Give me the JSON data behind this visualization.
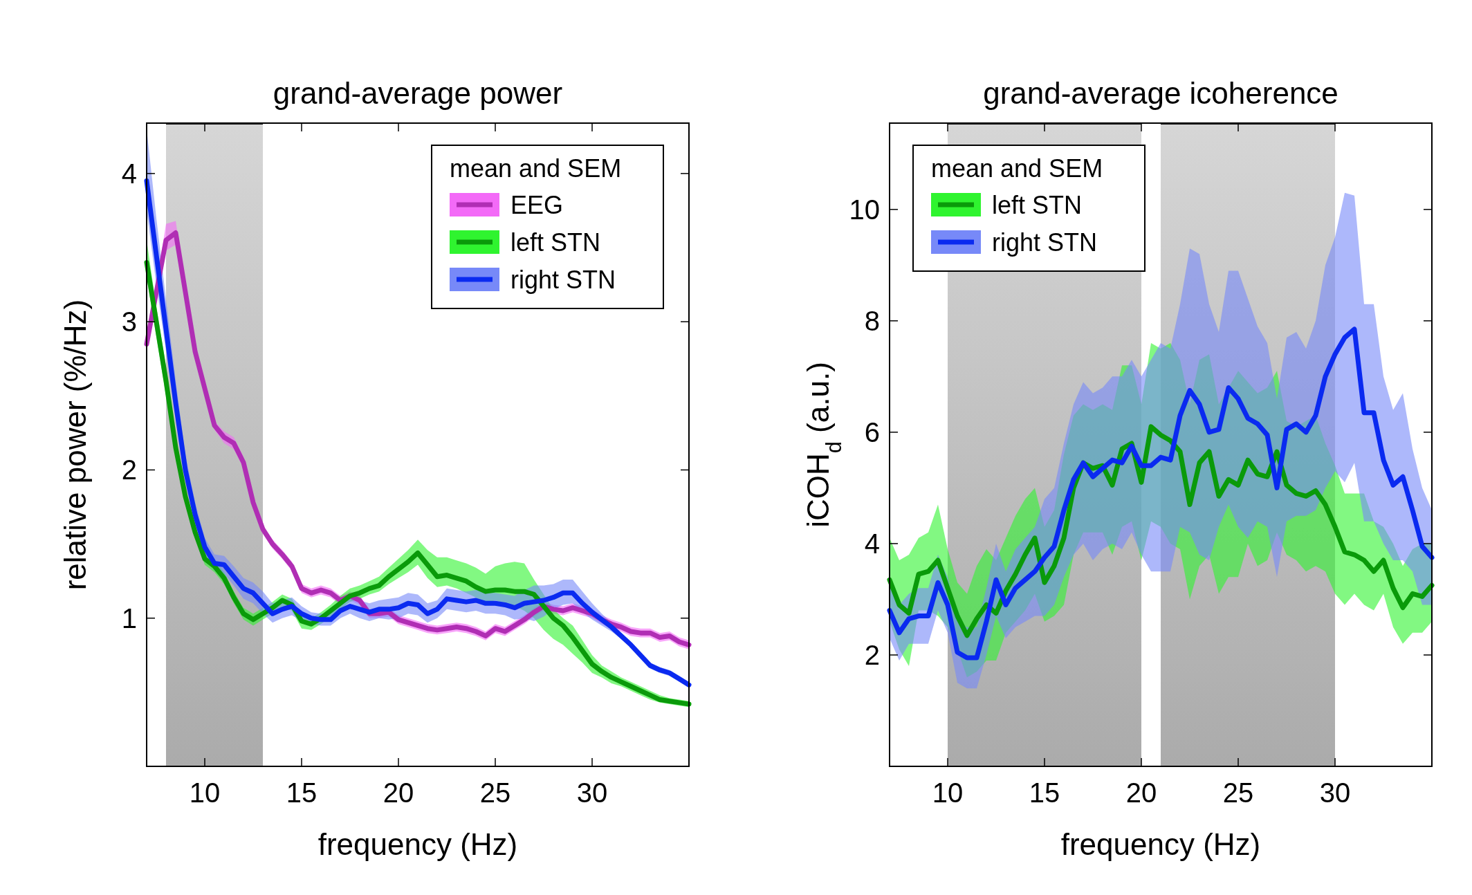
{
  "chart_data": [
    {
      "type": "line",
      "title": "grand-average power",
      "xlabel": "frequency (Hz)",
      "ylabel": "relative power (%/Hz)",
      "legend_title": "mean and SEM",
      "legend": "top right",
      "grid": false,
      "xlim": [
        7,
        35
      ],
      "ylim": [
        0,
        4.34
      ],
      "xticks": [
        10,
        15,
        20,
        25,
        30
      ],
      "yticks": [
        1,
        2,
        3,
        4
      ],
      "bands": [
        {
          "axis": "x",
          "from": 8,
          "to": 13,
          "color": "#b4b4b4"
        }
      ],
      "x": [
        7,
        7.5,
        8,
        8.5,
        9,
        9.5,
        10,
        10.5,
        11,
        11.5,
        12,
        12.5,
        13,
        13.5,
        14,
        14.5,
        15,
        15.5,
        16,
        16.5,
        17,
        17.5,
        18,
        18.5,
        19,
        19.5,
        20,
        20.5,
        21,
        21.5,
        22,
        22.5,
        23,
        23.5,
        24,
        24.5,
        25,
        25.5,
        26,
        26.5,
        27,
        27.5,
        28,
        28.5,
        29,
        29.5,
        30,
        30.5,
        31,
        31.5,
        32,
        32.5,
        33,
        33.5,
        34,
        34.5,
        35
      ],
      "series": [
        {
          "name": "EEG",
          "color": "#b02eb4",
          "values": [
            2.85,
            3.2,
            3.55,
            3.6,
            3.2,
            2.8,
            2.55,
            2.3,
            2.22,
            2.18,
            2.05,
            1.78,
            1.6,
            1.5,
            1.43,
            1.35,
            1.2,
            1.17,
            1.19,
            1.17,
            1.12,
            1.15,
            1.12,
            1.03,
            1.03,
            1.04,
            0.99,
            0.97,
            0.95,
            0.93,
            0.92,
            0.93,
            0.94,
            0.93,
            0.91,
            0.88,
            0.93,
            0.91,
            0.95,
            0.99,
            1.04,
            1.08,
            1.06,
            1.05,
            1.07,
            1.05,
            1.03,
            0.99,
            0.96,
            0.94,
            0.91,
            0.9,
            0.9,
            0.87,
            0.88,
            0.84,
            0.82
          ],
          "lower": [
            2.8,
            3.15,
            3.48,
            3.52,
            3.15,
            2.76,
            2.51,
            2.27,
            2.18,
            2.14,
            2.01,
            1.75,
            1.57,
            1.47,
            1.4,
            1.32,
            1.17,
            1.14,
            1.16,
            1.14,
            1.09,
            1.12,
            1.09,
            1.0,
            1.0,
            1.01,
            0.96,
            0.94,
            0.92,
            0.9,
            0.89,
            0.9,
            0.91,
            0.9,
            0.88,
            0.85,
            0.9,
            0.88,
            0.92,
            0.96,
            1.01,
            1.05,
            1.03,
            1.02,
            1.04,
            1.02,
            1.0,
            0.96,
            0.93,
            0.91,
            0.88,
            0.87,
            0.87,
            0.84,
            0.85,
            0.81,
            0.79
          ],
          "upper": [
            2.9,
            3.25,
            3.66,
            3.68,
            3.25,
            2.84,
            2.59,
            2.33,
            2.26,
            2.22,
            2.09,
            1.81,
            1.63,
            1.53,
            1.46,
            1.38,
            1.23,
            1.2,
            1.22,
            1.2,
            1.15,
            1.18,
            1.15,
            1.06,
            1.06,
            1.07,
            1.02,
            1.0,
            0.98,
            0.96,
            0.95,
            0.96,
            0.97,
            0.96,
            0.94,
            0.91,
            0.96,
            0.94,
            0.98,
            1.02,
            1.07,
            1.11,
            1.09,
            1.08,
            1.1,
            1.08,
            1.06,
            1.02,
            0.99,
            0.97,
            0.94,
            0.93,
            0.93,
            0.9,
            0.91,
            0.87,
            0.85
          ]
        },
        {
          "name": "left STN",
          "color": "#0a9a0a",
          "values": [
            3.4,
            3.0,
            2.6,
            2.15,
            1.82,
            1.58,
            1.4,
            1.35,
            1.27,
            1.14,
            1.03,
            0.99,
            1.03,
            1.07,
            1.12,
            1.09,
            0.98,
            0.96,
            1.0,
            1.05,
            1.1,
            1.15,
            1.17,
            1.2,
            1.22,
            1.28,
            1.33,
            1.38,
            1.44,
            1.36,
            1.28,
            1.29,
            1.27,
            1.25,
            1.21,
            1.18,
            1.19,
            1.19,
            1.18,
            1.18,
            1.16,
            1.08,
            1.0,
            0.95,
            0.87,
            0.78,
            0.69,
            0.64,
            0.6,
            0.57,
            0.54,
            0.51,
            0.48,
            0.45,
            0.44,
            0.43,
            0.42
          ],
          "lower": [
            3.3,
            2.9,
            2.5,
            2.08,
            1.77,
            1.54,
            1.36,
            1.31,
            1.23,
            1.1,
            0.99,
            0.95,
            0.99,
            1.03,
            1.08,
            1.05,
            0.93,
            0.92,
            0.96,
            1.01,
            1.06,
            1.11,
            1.13,
            1.16,
            1.18,
            1.23,
            1.27,
            1.31,
            1.36,
            1.27,
            1.21,
            1.22,
            1.2,
            1.17,
            1.14,
            1.1,
            1.12,
            1.1,
            1.08,
            1.05,
            1.0,
            0.92,
            0.86,
            0.82,
            0.76,
            0.7,
            0.63,
            0.6,
            0.56,
            0.54,
            0.51,
            0.48,
            0.45,
            0.43,
            0.42,
            0.41,
            0.4
          ],
          "upper": [
            3.55,
            3.1,
            2.7,
            2.22,
            1.87,
            1.62,
            1.44,
            1.39,
            1.31,
            1.18,
            1.07,
            1.03,
            1.07,
            1.11,
            1.16,
            1.13,
            1.02,
            1.0,
            1.04,
            1.09,
            1.15,
            1.2,
            1.22,
            1.25,
            1.28,
            1.34,
            1.4,
            1.46,
            1.53,
            1.46,
            1.41,
            1.41,
            1.39,
            1.37,
            1.34,
            1.3,
            1.35,
            1.37,
            1.38,
            1.37,
            1.26,
            1.16,
            1.06,
            1.0,
            0.95,
            0.85,
            0.75,
            0.68,
            0.64,
            0.6,
            0.57,
            0.54,
            0.51,
            0.48,
            0.46,
            0.45,
            0.44
          ]
        },
        {
          "name": "right STN",
          "color": "#0a2af0",
          "values": [
            3.95,
            3.45,
            2.95,
            2.45,
            2.0,
            1.7,
            1.48,
            1.37,
            1.36,
            1.28,
            1.2,
            1.17,
            1.1,
            1.03,
            1.06,
            1.08,
            1.03,
            1.0,
            0.99,
            0.99,
            1.05,
            1.08,
            1.06,
            1.04,
            1.06,
            1.06,
            1.07,
            1.1,
            1.09,
            1.03,
            1.06,
            1.13,
            1.12,
            1.11,
            1.12,
            1.1,
            1.1,
            1.09,
            1.07,
            1.1,
            1.11,
            1.12,
            1.14,
            1.17,
            1.17,
            1.1,
            1.04,
            0.99,
            0.94,
            0.88,
            0.82,
            0.75,
            0.68,
            0.65,
            0.63,
            0.59,
            0.55
          ],
          "lower": [
            3.75,
            3.25,
            2.8,
            2.35,
            1.93,
            1.64,
            1.43,
            1.32,
            1.3,
            1.22,
            1.13,
            1.1,
            1.03,
            0.97,
            1.0,
            1.02,
            0.98,
            0.96,
            0.95,
            0.95,
            1.0,
            1.03,
            1.0,
            0.98,
            1.0,
            0.99,
            1.0,
            1.03,
            1.02,
            0.97,
            1.0,
            1.06,
            1.05,
            1.04,
            1.05,
            1.03,
            1.03,
            1.02,
            0.99,
            1.0,
            0.98,
            1.01,
            1.06,
            1.09,
            1.1,
            1.04,
            0.99,
            0.95,
            0.91,
            0.86,
            0.8,
            0.73,
            0.66,
            0.63,
            0.61,
            0.57,
            0.53
          ],
          "upper": [
            4.3,
            3.7,
            3.15,
            2.6,
            2.1,
            1.78,
            1.54,
            1.43,
            1.42,
            1.35,
            1.27,
            1.24,
            1.18,
            1.1,
            1.12,
            1.14,
            1.08,
            1.04,
            1.03,
            1.03,
            1.1,
            1.13,
            1.12,
            1.1,
            1.12,
            1.13,
            1.14,
            1.17,
            1.16,
            1.1,
            1.12,
            1.2,
            1.19,
            1.18,
            1.19,
            1.17,
            1.17,
            1.16,
            1.15,
            1.19,
            1.22,
            1.22,
            1.23,
            1.26,
            1.26,
            1.18,
            1.1,
            1.03,
            0.97,
            0.9,
            0.84,
            0.77,
            0.7,
            0.67,
            0.65,
            0.61,
            0.57
          ]
        }
      ]
    },
    {
      "type": "line",
      "title": "grand-average icoherence",
      "xlabel": "frequency (Hz)",
      "ylabel": "iCOH$_{d}$ (a.u.)",
      "legend_title": "mean and SEM",
      "legend": "top left",
      "grid": false,
      "xlim": [
        7,
        35
      ],
      "ylim": [
        0,
        11.55
      ],
      "xticks": [
        10,
        15,
        20,
        25,
        30
      ],
      "yticks": [
        2,
        4,
        6,
        8,
        10
      ],
      "bands": [
        {
          "axis": "x",
          "from": 10,
          "to": 20,
          "color": "#b4b4b4"
        },
        {
          "axis": "x",
          "from": 21,
          "to": 30,
          "color": "#b4b4b4"
        }
      ],
      "x": [
        7,
        7.5,
        8,
        8.5,
        9,
        9.5,
        10,
        10.5,
        11,
        11.5,
        12,
        12.5,
        13,
        13.5,
        14,
        14.5,
        15,
        15.5,
        16,
        16.5,
        17,
        17.5,
        18,
        18.5,
        19,
        19.5,
        20,
        20.5,
        21,
        21.5,
        22,
        22.5,
        23,
        23.5,
        24,
        24.5,
        25,
        25.5,
        26,
        26.5,
        27,
        27.5,
        28,
        28.5,
        29,
        29.5,
        30,
        30.5,
        31,
        31.5,
        32,
        32.5,
        33,
        33.5,
        34,
        34.5,
        35
      ],
      "series": [
        {
          "name": "left STN",
          "color": "#0a9a0a",
          "values": [
            3.35,
            2.9,
            2.75,
            3.45,
            3.5,
            3.7,
            3.2,
            2.7,
            2.35,
            2.65,
            2.9,
            2.75,
            3.15,
            3.45,
            3.8,
            4.1,
            3.3,
            3.6,
            4.1,
            5.0,
            5.45,
            5.35,
            5.4,
            5.05,
            5.7,
            5.8,
            5.1,
            6.1,
            5.95,
            5.85,
            5.65,
            4.7,
            5.45,
            5.65,
            4.85,
            5.15,
            5.05,
            5.5,
            5.25,
            5.2,
            5.65,
            5.05,
            4.9,
            4.85,
            4.95,
            4.7,
            4.3,
            3.85,
            3.8,
            3.7,
            3.5,
            3.7,
            3.2,
            2.85,
            3.1,
            3.05,
            3.25
          ],
          "lower": [
            2.6,
            2.1,
            1.8,
            2.8,
            2.8,
            2.7,
            2.5,
            2.1,
            1.6,
            1.7,
            1.9,
            1.9,
            2.4,
            2.6,
            2.8,
            3.1,
            2.6,
            2.7,
            2.9,
            3.8,
            4.2,
            4.2,
            4.2,
            3.8,
            4.3,
            4.4,
            3.7,
            4.4,
            4.3,
            4.0,
            3.9,
            3.0,
            3.6,
            3.8,
            3.1,
            3.4,
            3.4,
            4.0,
            3.6,
            3.7,
            4.2,
            3.8,
            3.7,
            3.5,
            3.6,
            3.5,
            3.1,
            2.9,
            3.1,
            2.9,
            2.8,
            3.1,
            2.5,
            2.2,
            2.4,
            2.4,
            2.6
          ],
          "upper": [
            4.1,
            3.7,
            3.8,
            4.1,
            4.2,
            4.7,
            3.9,
            3.3,
            3.1,
            3.6,
            3.9,
            3.7,
            4.1,
            4.5,
            4.8,
            5.0,
            4.3,
            4.6,
            5.6,
            6.3,
            6.5,
            6.4,
            6.5,
            6.4,
            7.2,
            7.2,
            6.5,
            7.6,
            7.5,
            7.6,
            7.3,
            6.5,
            7.3,
            7.4,
            6.5,
            6.8,
            7.1,
            6.9,
            6.7,
            6.8,
            7.1,
            6.2,
            6.1,
            6.2,
            6.3,
            5.8,
            5.4,
            4.9,
            4.9,
            4.9,
            4.4,
            4.3,
            4.0,
            3.6,
            3.9,
            4.0,
            4.0
          ]
        },
        {
          "name": "right STN",
          "color": "#0a2af0",
          "values": [
            2.8,
            2.4,
            2.65,
            2.7,
            2.7,
            3.3,
            2.9,
            2.05,
            1.95,
            1.95,
            2.6,
            3.35,
            2.9,
            3.2,
            3.35,
            3.5,
            3.75,
            3.95,
            4.6,
            5.15,
            5.45,
            5.2,
            5.35,
            5.5,
            5.45,
            5.75,
            5.4,
            5.4,
            5.55,
            5.5,
            6.3,
            6.75,
            6.5,
            6.0,
            6.05,
            6.8,
            6.6,
            6.25,
            6.15,
            5.95,
            5.0,
            6.05,
            6.15,
            6.0,
            6.3,
            7.0,
            7.4,
            7.7,
            7.85,
            6.35,
            6.35,
            5.5,
            5.05,
            5.2,
            4.6,
            3.95,
            3.75
          ],
          "lower": [
            2.3,
            1.9,
            2.2,
            2.2,
            2.2,
            2.8,
            2.4,
            1.5,
            1.4,
            1.4,
            2.0,
            2.7,
            2.3,
            2.5,
            2.6,
            2.7,
            2.7,
            2.9,
            3.4,
            3.8,
            4.0,
            3.7,
            3.9,
            4.0,
            3.9,
            4.2,
            3.8,
            3.5,
            3.5,
            3.5,
            4.3,
            4.2,
            3.8,
            3.7,
            4.3,
            4.7,
            4.3,
            4.1,
            4.4,
            4.3,
            3.4,
            4.4,
            4.5,
            4.5,
            4.6,
            5.0,
            5.3,
            5.1,
            5.45,
            4.4,
            4.4,
            4.0,
            3.7,
            3.7,
            3.5,
            2.9,
            2.9
          ],
          "upper": [
            3.3,
            2.9,
            3.1,
            3.2,
            3.2,
            3.8,
            3.4,
            2.6,
            2.5,
            2.5,
            3.2,
            4.0,
            3.5,
            3.9,
            4.1,
            4.3,
            4.8,
            5.0,
            5.8,
            6.5,
            6.9,
            6.7,
            6.8,
            7.0,
            7.0,
            7.3,
            7.0,
            7.3,
            7.6,
            7.5,
            8.3,
            9.3,
            9.2,
            8.3,
            7.8,
            8.9,
            8.9,
            8.4,
            7.9,
            7.6,
            6.6,
            7.7,
            7.8,
            7.5,
            8.0,
            9.0,
            9.5,
            10.3,
            10.25,
            8.3,
            8.3,
            7.0,
            6.4,
            6.7,
            5.7,
            5.0,
            4.6
          ]
        }
      ]
    }
  ]
}
